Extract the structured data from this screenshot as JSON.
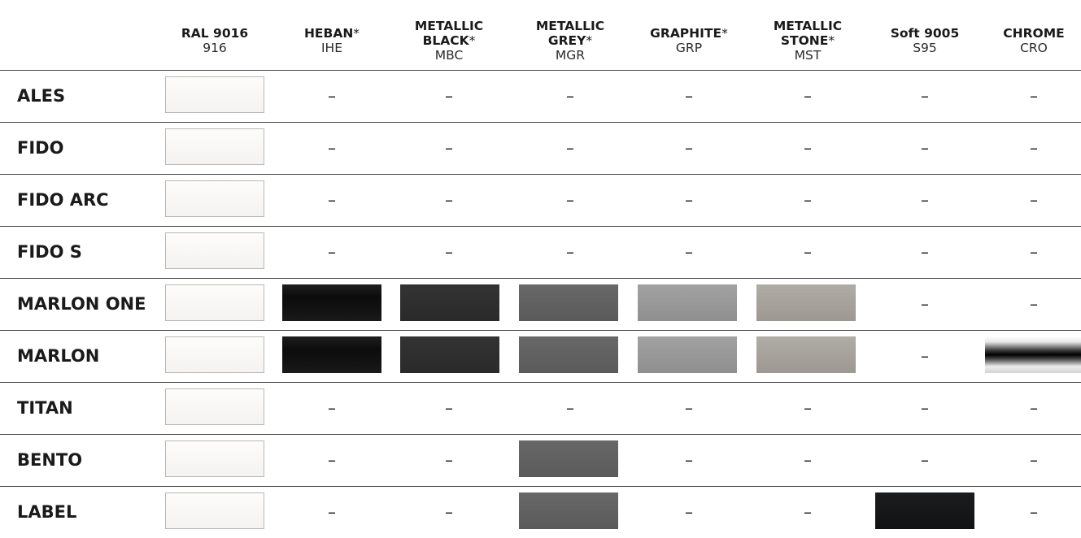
{
  "columns": [
    {
      "id": "916",
      "name_lines": [
        "RAL 9016"
      ],
      "asterisk": false,
      "code": "916",
      "swatch_color": "#f7f6f4"
    },
    {
      "id": "ihe",
      "name_lines": [
        "HEBAN"
      ],
      "asterisk": true,
      "code": "IHE",
      "swatch_color": "#141414"
    },
    {
      "id": "mbc",
      "name_lines": [
        "METALLIC",
        "BLACK"
      ],
      "asterisk": true,
      "code": "MBC",
      "swatch_color": "#2e2e2e"
    },
    {
      "id": "mgr",
      "name_lines": [
        "METALLIC",
        "GREY"
      ],
      "asterisk": true,
      "code": "MGR",
      "swatch_color": "#616161"
    },
    {
      "id": "grp",
      "name_lines": [
        "GRAPHITE"
      ],
      "asterisk": true,
      "code": "GRP",
      "swatch_color": "#999999"
    },
    {
      "id": "mst",
      "name_lines": [
        "METALLIC",
        "STONE"
      ],
      "asterisk": true,
      "code": "MST",
      "swatch_color": "#a7a29b"
    },
    {
      "id": "s95",
      "name_lines": [
        "Soft 9005"
      ],
      "asterisk": false,
      "code": "S95",
      "swatch_color": "#161719"
    },
    {
      "id": "cro",
      "name_lines": [
        "CHROME"
      ],
      "asterisk": false,
      "code": "CRO",
      "swatch_color": "#1a1a1a"
    }
  ],
  "asterisk_symbol": "*",
  "dash": "–",
  "rows": [
    {
      "label": "ALES",
      "avail": [
        true,
        false,
        false,
        false,
        false,
        false,
        false,
        false
      ]
    },
    {
      "label": "FIDO",
      "avail": [
        true,
        false,
        false,
        false,
        false,
        false,
        false,
        false
      ]
    },
    {
      "label": "FIDO ARC",
      "avail": [
        true,
        false,
        false,
        false,
        false,
        false,
        false,
        false
      ]
    },
    {
      "label": "FIDO S",
      "avail": [
        true,
        false,
        false,
        false,
        false,
        false,
        false,
        false
      ]
    },
    {
      "label": "MARLON ONE",
      "avail": [
        true,
        true,
        true,
        true,
        true,
        true,
        false,
        false
      ]
    },
    {
      "label": "MARLON",
      "avail": [
        true,
        true,
        true,
        true,
        true,
        true,
        false,
        true
      ]
    },
    {
      "label": "TITAN",
      "avail": [
        true,
        false,
        false,
        false,
        false,
        false,
        false,
        false
      ]
    },
    {
      "label": "BENTO",
      "avail": [
        true,
        false,
        false,
        true,
        false,
        false,
        false,
        false
      ]
    },
    {
      "label": "LABEL",
      "avail": [
        true,
        false,
        false,
        true,
        false,
        false,
        true,
        false
      ]
    }
  ]
}
